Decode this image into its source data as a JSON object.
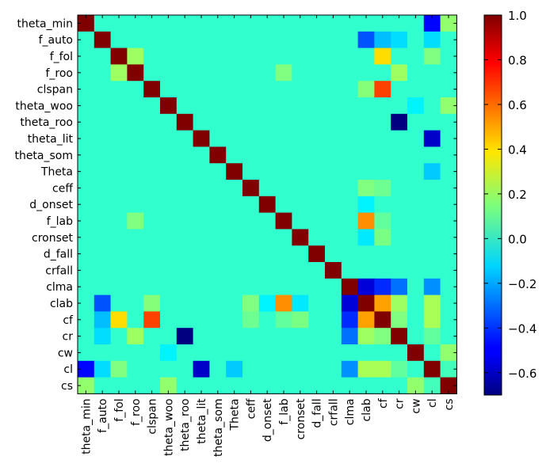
{
  "chart_data": {
    "type": "heatmap",
    "title": "",
    "xlabel": "",
    "ylabel": "",
    "labels": [
      "theta_min",
      "f_auto",
      "f_fol",
      "f_roo",
      "clspan",
      "theta_woo",
      "theta_roo",
      "theta_lit",
      "theta_som",
      "Theta",
      "ceff",
      "d_onset",
      "f_lab",
      "cronset",
      "d_fall",
      "crfall",
      "clma",
      "clab",
      "cf",
      "cr",
      "cw",
      "cl",
      "cs"
    ],
    "colorbar": {
      "min": -0.7,
      "max": 1.0,
      "ticks": [
        1.0,
        0.8,
        0.6,
        0.4,
        0.2,
        0.0,
        -0.2,
        -0.4,
        -0.6
      ],
      "tick_labels": [
        "1.0",
        "0.8",
        "0.6",
        "0.4",
        "0.2",
        "0.0",
        "−0.2",
        "−0.4",
        "−0.6"
      ],
      "colormap": "jet"
    },
    "default_value": 0.02,
    "diagonal_value": 1.0,
    "notable_values": [
      {
        "row": "theta_min",
        "col": "cl",
        "value": -0.48
      },
      {
        "row": "theta_min",
        "col": "cs",
        "value": 0.18
      },
      {
        "row": "f_auto",
        "col": "clab",
        "value": -0.35
      },
      {
        "row": "f_auto",
        "col": "cf",
        "value": -0.17
      },
      {
        "row": "f_auto",
        "col": "cr",
        "value": -0.12
      },
      {
        "row": "f_auto",
        "col": "cl",
        "value": -0.12
      },
      {
        "row": "f_fol",
        "col": "cf",
        "value": 0.42
      },
      {
        "row": "f_fol",
        "col": "f_roo",
        "value": 0.2
      },
      {
        "row": "f_fol",
        "col": "cl",
        "value": 0.15
      },
      {
        "row": "f_roo",
        "col": "f_lab",
        "value": 0.15
      },
      {
        "row": "f_roo",
        "col": "cr",
        "value": 0.2
      },
      {
        "row": "clspan",
        "col": "cf",
        "value": 0.68
      },
      {
        "row": "clspan",
        "col": "clab",
        "value": 0.16
      },
      {
        "row": "theta_woo",
        "col": "cs",
        "value": 0.18
      },
      {
        "row": "theta_woo",
        "col": "cw",
        "value": -0.08
      },
      {
        "row": "theta_roo",
        "col": "cr",
        "value": -0.7
      },
      {
        "row": "theta_lit",
        "col": "cl",
        "value": -0.58
      },
      {
        "row": "Theta",
        "col": "cl",
        "value": -0.15
      },
      {
        "row": "ceff",
        "col": "clab",
        "value": 0.15
      },
      {
        "row": "ceff",
        "col": "cf",
        "value": 0.12
      },
      {
        "row": "d_onset",
        "col": "clab",
        "value": -0.08
      },
      {
        "row": "f_lab",
        "col": "clab",
        "value": 0.55
      },
      {
        "row": "f_lab",
        "col": "cf",
        "value": 0.1
      },
      {
        "row": "f_lab",
        "col": "f_roo",
        "value": 0.15
      },
      {
        "row": "cronset",
        "col": "clab",
        "value": -0.1
      },
      {
        "row": "cronset",
        "col": "cf",
        "value": 0.14
      },
      {
        "row": "clma",
        "col": "clab",
        "value": -0.55
      },
      {
        "row": "clma",
        "col": "cf",
        "value": -0.42
      },
      {
        "row": "clma",
        "col": "cr",
        "value": -0.3
      },
      {
        "row": "clma",
        "col": "cl",
        "value": -0.25
      },
      {
        "row": "clab",
        "col": "cf",
        "value": 0.52
      },
      {
        "row": "clab",
        "col": "cr",
        "value": 0.2
      },
      {
        "row": "clab",
        "col": "cl",
        "value": 0.22
      },
      {
        "row": "cf",
        "col": "cr",
        "value": 0.15
      },
      {
        "row": "cf",
        "col": "cl",
        "value": 0.22
      },
      {
        "row": "cr",
        "col": "cl",
        "value": 0.1
      },
      {
        "row": "cw",
        "col": "cs",
        "value": 0.18
      },
      {
        "row": "cl",
        "col": "cs",
        "value": 0.05
      }
    ]
  }
}
